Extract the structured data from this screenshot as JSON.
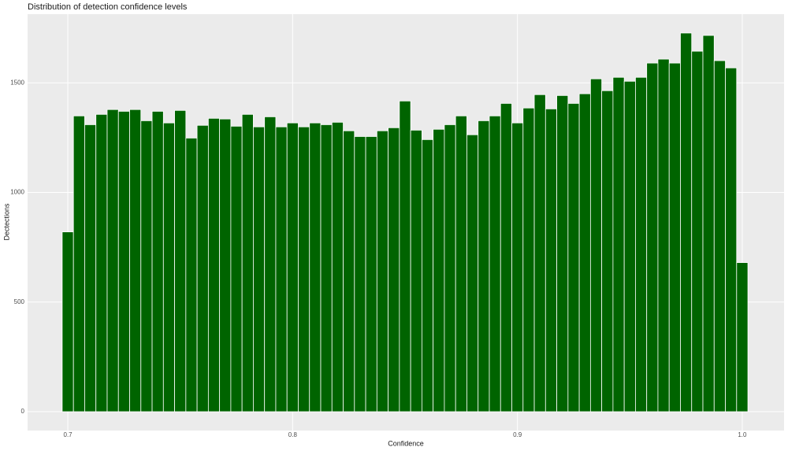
{
  "chart_data": {
    "type": "histogram",
    "title": "Distribution of detection confidence levels",
    "x_label": "Confidence",
    "y_label": "Dectections",
    "bins": [
      0.6975,
      0.7025,
      0.7075,
      0.7125,
      0.7175,
      0.7225,
      0.7275,
      0.7325,
      0.7375,
      0.7425,
      0.7475,
      0.7525,
      0.7575,
      0.7625,
      0.7675,
      0.7725,
      0.7775,
      0.7825,
      0.7875,
      0.7925,
      0.7975,
      0.8025,
      0.8075,
      0.8125,
      0.8175,
      0.8225,
      0.8275,
      0.8325,
      0.8375,
      0.8425,
      0.8475,
      0.8525,
      0.8575,
      0.8625,
      0.8675,
      0.8725,
      0.8775,
      0.8825,
      0.8875,
      0.8925,
      0.8975,
      0.9025,
      0.9075,
      0.9125,
      0.9175,
      0.9225,
      0.9275,
      0.9325,
      0.9375,
      0.9425,
      0.9475,
      0.9525,
      0.9575,
      0.9625,
      0.9675,
      0.9725,
      0.9775,
      0.9825,
      0.9875,
      0.9925,
      0.9975,
      1.0025
    ],
    "values": [
      820,
      1349,
      1309,
      1356,
      1378,
      1370,
      1378,
      1327,
      1370,
      1317,
      1374,
      1248,
      1306,
      1338,
      1335,
      1302,
      1356,
      1299,
      1345,
      1299,
      1317,
      1299,
      1317,
      1309,
      1320,
      1281,
      1255,
      1255,
      1281,
      1295,
      1417,
      1284,
      1241,
      1288,
      1309,
      1349,
      1263,
      1327,
      1349,
      1406,
      1317,
      1385,
      1446,
      1381,
      1442,
      1406,
      1450,
      1518,
      1464,
      1525,
      1507,
      1525,
      1590,
      1608,
      1590,
      1727,
      1644,
      1716,
      1601,
      1568,
      680
    ],
    "color": "#006400",
    "xlim": [
      0.6821,
      1.0186
    ],
    "xticks": [
      0.7,
      0.8,
      0.9,
      {
        "value": 1,
        "label": "1.0"
      }
    ],
    "ylim": [
      -86,
      1813
    ],
    "yticks": [
      0,
      500,
      1000,
      1500
    ],
    "grid": true
  }
}
